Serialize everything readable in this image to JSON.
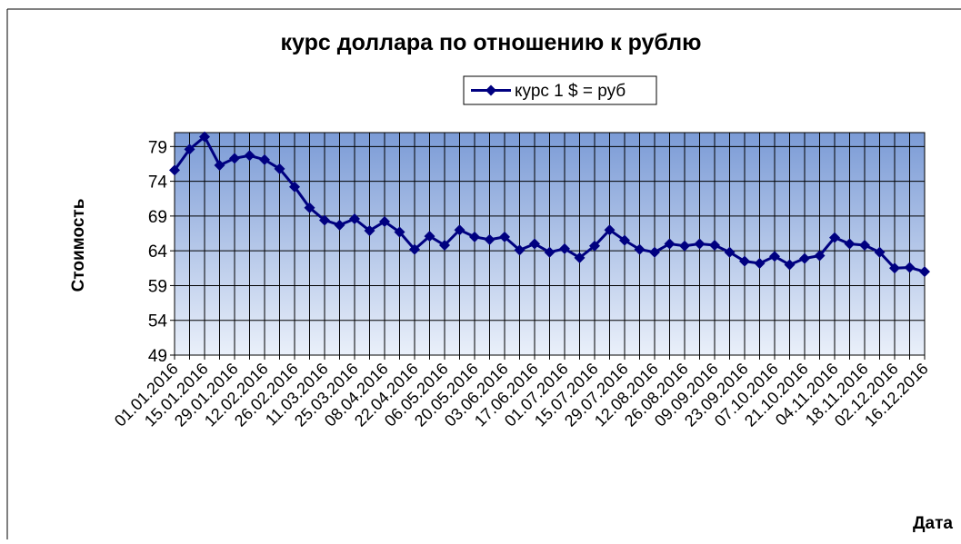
{
  "chart_data": {
    "type": "line",
    "title": "курс доллара по отношению  к рублю",
    "x_label": "Дата",
    "y_label": "Стоимость",
    "categories": [
      "01.01.2016",
      null,
      "15.01.2016",
      null,
      "29.01.2016",
      null,
      "12.02.2016",
      null,
      "26.02.2016",
      null,
      "11.03.2016",
      null,
      "25.03.2016",
      null,
      "08.04.2016",
      null,
      "22.04.2016",
      null,
      "06.05.2016",
      null,
      "20.05.2016",
      null,
      "03.06.2016",
      null,
      "17.06.2016",
      null,
      "01.07.2016",
      null,
      "15.07.2016",
      null,
      "29.07.2016",
      null,
      "12.08.2016",
      null,
      "26.08.2016",
      null,
      "09.09.2016",
      null,
      "23.09.2016",
      null,
      "07.10.2016",
      null,
      "21.10.2016",
      null,
      "04.11.2016",
      null,
      "18.11.2016",
      null,
      "02.12.2016",
      null,
      "16.12.2016"
    ],
    "series": [
      {
        "name": "курс 1 $ = руб",
        "color": "#000080",
        "values": [
          75.6,
          78.6,
          80.4,
          76.3,
          77.3,
          77.7,
          77.1,
          75.8,
          73.2,
          70.2,
          68.4,
          67.7,
          68.6,
          66.9,
          68.2,
          66.7,
          64.2,
          66.1,
          64.8,
          67.0,
          66.0,
          65.6,
          66.0,
          64.1,
          65.0,
          63.8,
          64.3,
          63.0,
          64.7,
          67.0,
          65.5,
          64.2,
          63.8,
          65.0,
          64.7,
          65.0,
          64.8,
          63.8,
          62.5,
          62.2,
          63.2,
          62.0,
          62.9,
          63.3,
          65.9,
          65.0,
          64.8,
          63.8,
          61.5,
          61.6,
          61.0
        ]
      }
    ],
    "ylim": [
      49,
      81
    ],
    "yticks": [
      49,
      54,
      59,
      64,
      69,
      74,
      79
    ],
    "grid": true,
    "legend": "top"
  }
}
